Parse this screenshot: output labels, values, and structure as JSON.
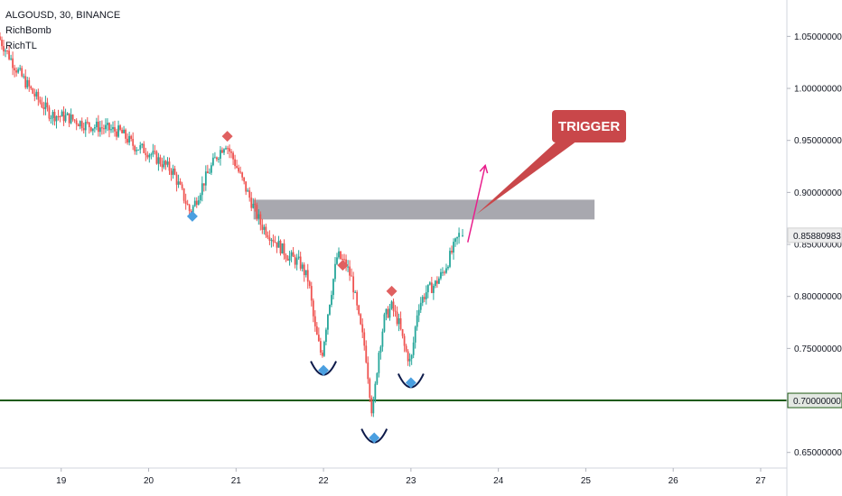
{
  "header": {
    "symbol_line": "ALGOUSD, 30, BINANCE",
    "indicators": [
      "RichBomb",
      "RichTL"
    ]
  },
  "colors": {
    "up": "#26a69a",
    "down": "#ef5350",
    "support_line": "#1e5b14",
    "resistance_zone": "#9e9ea6",
    "trigger_callout": "#c9474a",
    "projection_arrow": "#e91e8c",
    "buy_marker": "#4a9fe0",
    "sell_marker": "#e06060",
    "price_badge_bg": "#eeeeee",
    "support_badge_bg": "#e3e8e2"
  },
  "annotation": {
    "trigger_label": "TRIGGER"
  },
  "price_badges": {
    "current": "0.85880983",
    "support": "0.70000000"
  },
  "chart_data": {
    "type": "candlestick",
    "symbol": "ALGOUSD",
    "interval": "30",
    "exchange": "BINANCE",
    "x_ticks": [
      "19",
      "20",
      "21",
      "22",
      "23",
      "24",
      "25",
      "26",
      "27"
    ],
    "y_ticks": [
      "0.65000000",
      "0.70000000",
      "0.75000000",
      "0.80000000",
      "0.85000000",
      "0.90000000",
      "0.95000000",
      "1.00000000",
      "1.05000000"
    ],
    "ylim": [
      0.635,
      1.085
    ],
    "xlim": [
      18.3,
      27.3
    ],
    "price_path": [
      [
        18.3,
        1.05
      ],
      [
        18.5,
        1.02
      ],
      [
        18.7,
        0.995
      ],
      [
        18.9,
        0.975
      ],
      [
        19.1,
        0.972
      ],
      [
        19.3,
        0.965
      ],
      [
        19.5,
        0.962
      ],
      [
        19.7,
        0.958
      ],
      [
        19.85,
        0.945
      ],
      [
        20.0,
        0.94
      ],
      [
        20.15,
        0.93
      ],
      [
        20.3,
        0.92
      ],
      [
        20.5,
        0.88
      ],
      [
        20.65,
        0.91
      ],
      [
        20.8,
        0.935
      ],
      [
        20.9,
        0.948
      ],
      [
        21.0,
        0.93
      ],
      [
        21.15,
        0.9
      ],
      [
        21.3,
        0.87
      ],
      [
        21.45,
        0.855
      ],
      [
        21.6,
        0.84
      ],
      [
        21.75,
        0.832
      ],
      [
        21.85,
        0.815
      ],
      [
        21.92,
        0.77
      ],
      [
        22.0,
        0.742
      ],
      [
        22.08,
        0.79
      ],
      [
        22.18,
        0.84
      ],
      [
        22.28,
        0.83
      ],
      [
        22.35,
        0.815
      ],
      [
        22.42,
        0.78
      ],
      [
        22.5,
        0.748
      ],
      [
        22.58,
        0.685
      ],
      [
        22.65,
        0.745
      ],
      [
        22.72,
        0.78
      ],
      [
        22.8,
        0.79
      ],
      [
        22.88,
        0.775
      ],
      [
        22.95,
        0.75
      ],
      [
        23.02,
        0.735
      ],
      [
        23.1,
        0.79
      ],
      [
        23.2,
        0.805
      ],
      [
        23.3,
        0.812
      ],
      [
        23.4,
        0.825
      ],
      [
        23.5,
        0.845
      ],
      [
        23.57,
        0.859
      ]
    ],
    "current_price": 0.85880983,
    "support_level": 0.7,
    "resistance_zone": {
      "x": [
        21.2,
        25.1
      ],
      "y": [
        0.874,
        0.893
      ]
    },
    "trigger_point": {
      "x": 23.75,
      "y": 0.879
    },
    "projection": {
      "from": [
        23.65,
        0.852
      ],
      "to": [
        23.85,
        0.926
      ]
    },
    "sell_signals": [
      [
        20.9,
        0.954
      ],
      [
        22.22,
        0.83
      ],
      [
        22.78,
        0.805
      ]
    ],
    "buy_signals": [
      [
        20.5,
        0.877
      ],
      [
        22.0,
        0.729
      ],
      [
        22.58,
        0.664
      ],
      [
        23.0,
        0.717
      ]
    ],
    "rounded_bottoms": [
      [
        22.0,
        0.729
      ],
      [
        22.58,
        0.664
      ],
      [
        23.0,
        0.717
      ]
    ]
  }
}
